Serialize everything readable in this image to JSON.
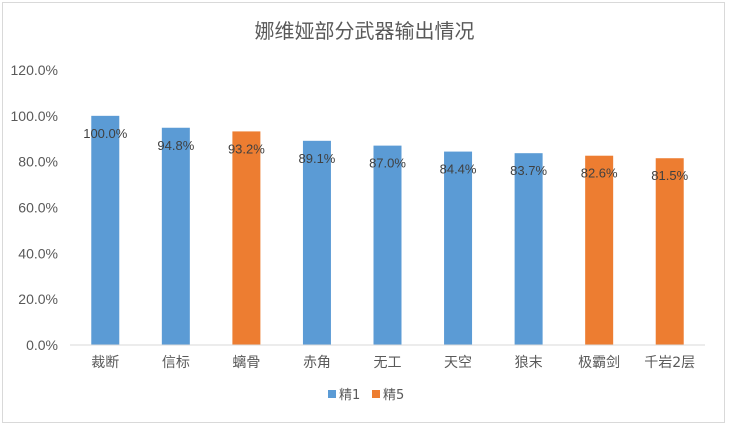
{
  "chart_data": {
    "type": "bar",
    "title": "娜维娅部分武器输出情况",
    "xlabel": "",
    "ylabel": "",
    "categories": [
      "裁断",
      "信标",
      "螭骨",
      "赤角",
      "无工",
      "天空",
      "狼末",
      "极霸剑",
      "千岩2层"
    ],
    "values": [
      100.0,
      94.8,
      93.2,
      89.1,
      87.0,
      84.4,
      83.7,
      82.6,
      81.5
    ],
    "data_labels": [
      "100.0%",
      "94.8%",
      "93.2%",
      "89.1%",
      "87.0%",
      "84.4%",
      "83.7%",
      "82.6%",
      "81.5%"
    ],
    "group": [
      "精1",
      "精1",
      "精5",
      "精1",
      "精1",
      "精1",
      "精1",
      "精5",
      "精5"
    ],
    "series": [
      {
        "name": "精1",
        "color": "#5b9bd5"
      },
      {
        "name": "精5",
        "color": "#ed7d31"
      }
    ],
    "ylim": [
      0,
      120
    ],
    "yticks": [
      "0.0%",
      "20.0%",
      "40.0%",
      "60.0%",
      "80.0%",
      "100.0%",
      "120.0%"
    ],
    "grid": false,
    "legend_position": "bottom"
  }
}
